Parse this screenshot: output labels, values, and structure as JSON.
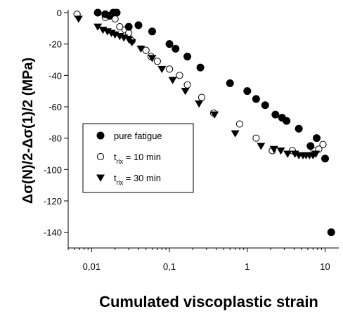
{
  "chart_data": {
    "type": "scatter",
    "xlabel": "Cumulated viscoplastic strain",
    "ylabel": "Δσ(N)/2-Δσ(1)/2 (MPa)",
    "xscale": "log",
    "xlim": [
      0.005,
      15
    ],
    "ylim": [
      -150,
      0
    ],
    "xticks": [
      0.01,
      0.1,
      1,
      10
    ],
    "xtick_labels": [
      "0,01",
      "0,1",
      "1",
      "10"
    ],
    "yticks": [
      0,
      -20,
      -40,
      -60,
      -80,
      -100,
      -120,
      -140
    ],
    "ytick_labels": [
      "0",
      "-20",
      "-40",
      "-60",
      "-80",
      "-100",
      "-120",
      "-140"
    ],
    "grid": false,
    "legend_position": "left",
    "series": [
      {
        "name": "pure fatigue",
        "marker": "filled-circle",
        "color": "#000000",
        "points": [
          [
            0.012,
            0
          ],
          [
            0.015,
            -1
          ],
          [
            0.017,
            -2
          ],
          [
            0.019,
            0
          ],
          [
            0.021,
            0
          ],
          [
            0.03,
            -9
          ],
          [
            0.04,
            -8
          ],
          [
            0.06,
            -12
          ],
          [
            0.1,
            -20
          ],
          [
            0.12,
            -23
          ],
          [
            0.17,
            -28
          ],
          [
            0.25,
            -35
          ],
          [
            0.6,
            -45
          ],
          [
            1.0,
            -50
          ],
          [
            1.3,
            -55
          ],
          [
            1.7,
            -59
          ],
          [
            2.3,
            -65
          ],
          [
            2.8,
            -67
          ],
          [
            3.2,
            -69
          ],
          [
            4.6,
            -74
          ],
          [
            6.5,
            -85
          ],
          [
            7.8,
            -80
          ],
          [
            10.0,
            -93
          ],
          [
            12.0,
            -140
          ]
        ]
      },
      {
        "name": "t_rlx = 10 min",
        "marker": "open-circle",
        "color": "#000000",
        "points": [
          [
            0.0065,
            -1
          ],
          [
            0.015,
            -3
          ],
          [
            0.02,
            -4
          ],
          [
            0.023,
            -9
          ],
          [
            0.027,
            -11
          ],
          [
            0.03,
            -13
          ],
          [
            0.033,
            -18
          ],
          [
            0.05,
            -24
          ],
          [
            0.058,
            -28
          ],
          [
            0.07,
            -31
          ],
          [
            0.1,
            -36
          ],
          [
            0.135,
            -40
          ],
          [
            0.17,
            -46
          ],
          [
            0.26,
            -54
          ],
          [
            0.37,
            -64
          ],
          [
            0.8,
            -71
          ],
          [
            1.3,
            -80
          ],
          [
            2.1,
            -88
          ],
          [
            3.8,
            -88
          ],
          [
            7.2,
            -88
          ],
          [
            8.3,
            -87
          ],
          [
            9.4,
            -84
          ]
        ]
      },
      {
        "name": "t_rlx = 30 min",
        "marker": "filled-triangle-down",
        "color": "#000000",
        "points": [
          [
            0.0068,
            -4
          ],
          [
            0.012,
            -9
          ],
          [
            0.014,
            -11
          ],
          [
            0.016,
            -12
          ],
          [
            0.018,
            -13
          ],
          [
            0.02,
            -14
          ],
          [
            0.023,
            -15
          ],
          [
            0.026,
            -16
          ],
          [
            0.03,
            -17
          ],
          [
            0.033,
            -19
          ],
          [
            0.043,
            -23
          ],
          [
            0.06,
            -29
          ],
          [
            0.08,
            -36
          ],
          [
            0.11,
            -43
          ],
          [
            0.16,
            -50
          ],
          [
            0.24,
            -58
          ],
          [
            0.38,
            -65
          ],
          [
            0.7,
            -77
          ],
          [
            1.5,
            -85
          ],
          [
            2.2,
            -87
          ],
          [
            2.7,
            -88
          ],
          [
            3.3,
            -90
          ],
          [
            4.1,
            -90
          ],
          [
            4.6,
            -91
          ],
          [
            5.2,
            -91
          ],
          [
            5.7,
            -91
          ],
          [
            6.3,
            -91
          ],
          [
            7.0,
            -91
          ],
          [
            7.6,
            -90
          ]
        ]
      }
    ],
    "legend": [
      {
        "marker": "filled-circle",
        "label": "pure fatigue",
        "sub": ""
      },
      {
        "marker": "open-circle",
        "label": "t",
        "sub": "rlx",
        "rest": " = 10 min"
      },
      {
        "marker": "filled-triangle-down",
        "label": "t",
        "sub": "rlx",
        "rest": " = 30 min"
      }
    ]
  }
}
